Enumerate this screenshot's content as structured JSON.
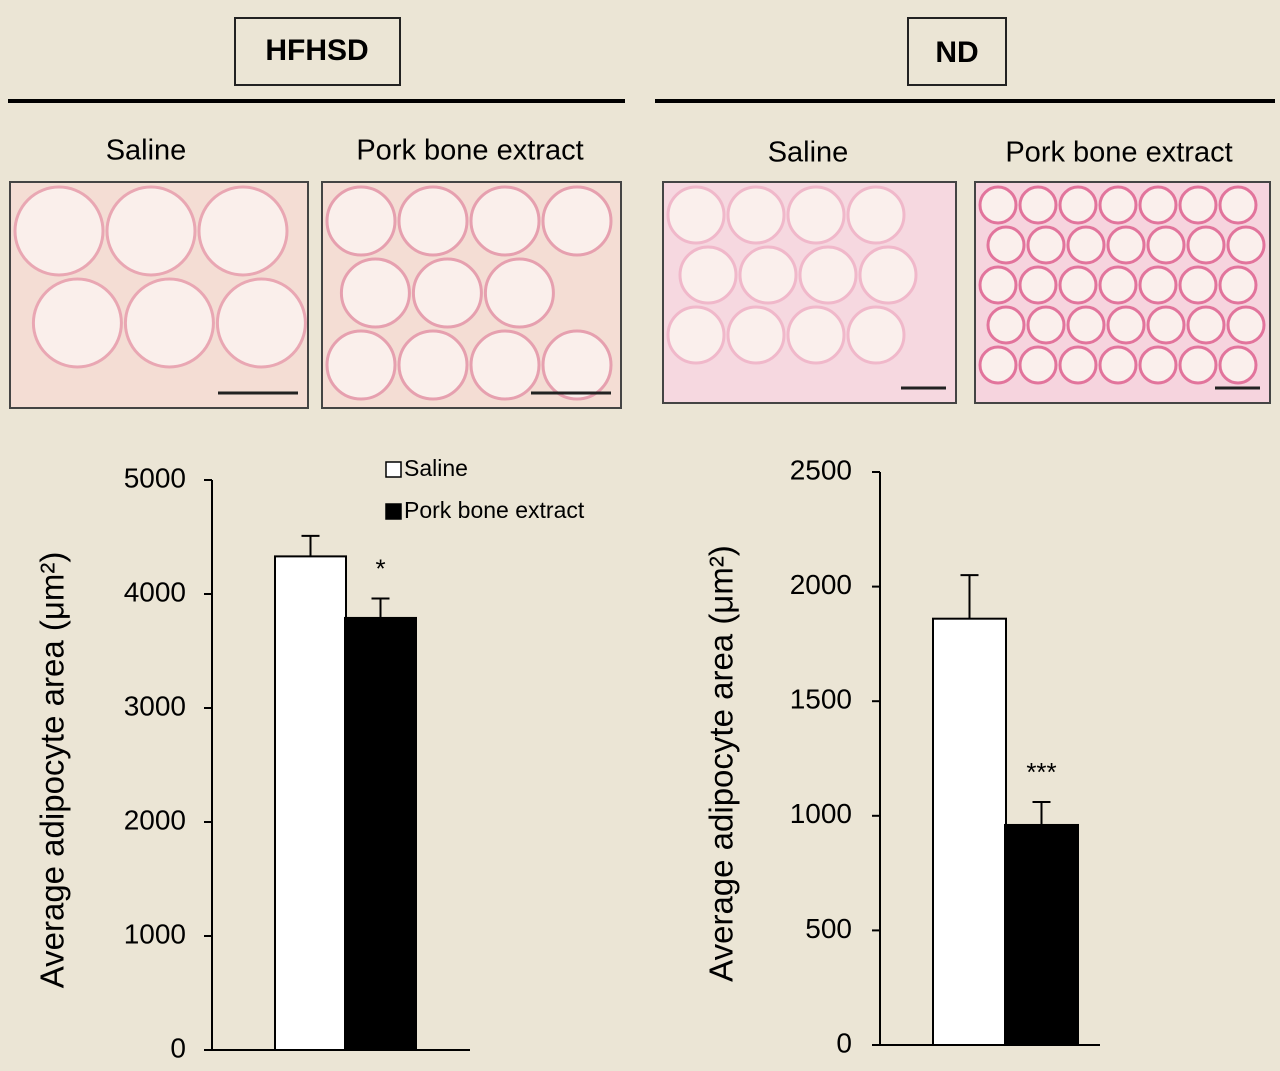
{
  "panels": [
    {
      "label": "HFHSD",
      "captions": [
        "Saline",
        "Pork bone extract"
      ]
    },
    {
      "label": "ND",
      "captions": [
        "Saline",
        "Pork bone extract"
      ]
    }
  ],
  "chart_data": [
    {
      "type": "bar",
      "ylabel": "Average adipocyte area (μm²)",
      "ylim": [
        0,
        5000
      ],
      "yticks": [
        0,
        1000,
        2000,
        3000,
        4000,
        5000
      ],
      "legend": "top-right",
      "series": [
        {
          "name": "Saline",
          "color": "#ffffff",
          "values": [
            4330
          ],
          "errors": [
            180
          ]
        },
        {
          "name": "Pork bone extract",
          "color": "#000000",
          "values": [
            3790
          ],
          "errors": [
            170
          ],
          "significance": "*"
        }
      ]
    },
    {
      "type": "bar",
      "ylabel": "Average adipocyte area (μm²)",
      "ylim": [
        0,
        2500
      ],
      "yticks": [
        0,
        500,
        1000,
        1500,
        2000,
        2500
      ],
      "series": [
        {
          "color": "#ffffff",
          "values": [
            1860
          ],
          "errors": [
            190
          ]
        },
        {
          "color": "#000000",
          "values": [
            960
          ],
          "errors": [
            100
          ],
          "significance": "***"
        }
      ]
    }
  ]
}
